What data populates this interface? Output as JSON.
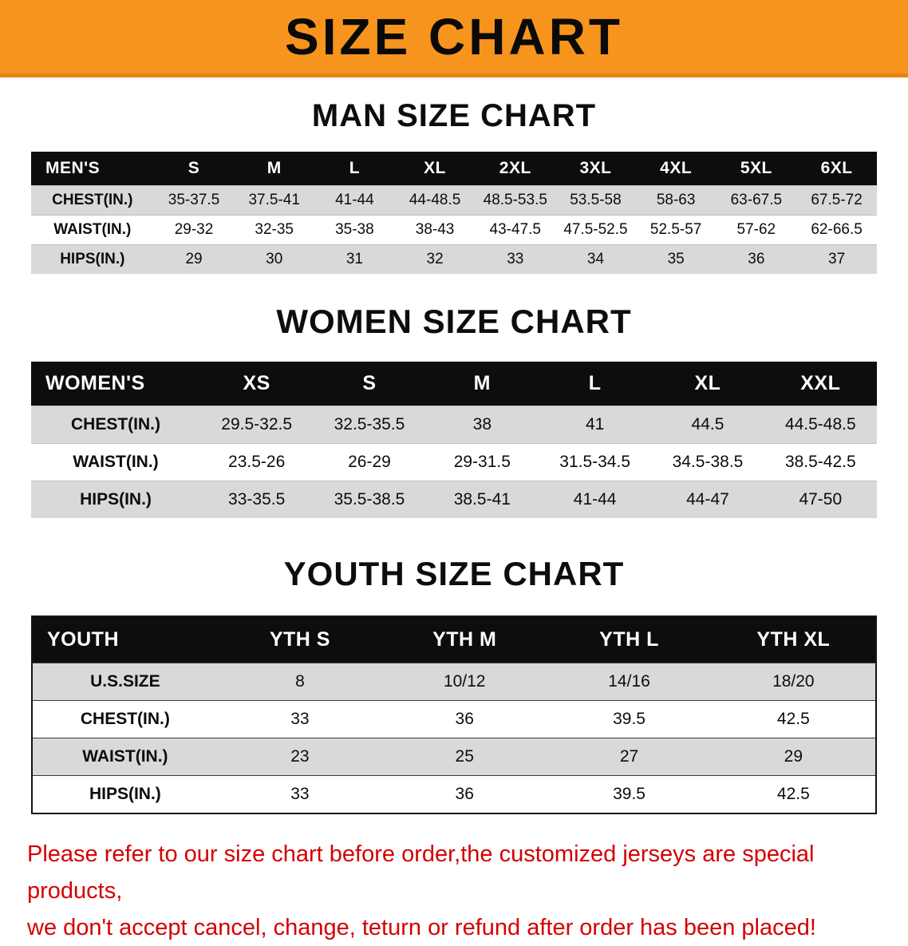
{
  "banner": {
    "title": "SIZE CHART"
  },
  "colors": {
    "banner_bg": "#f7941d",
    "banner_edge": "#e6820e",
    "header_bg": "#0d0d0d",
    "stripe_bg": "#d9d9d9",
    "notice_color": "#d40000",
    "text_color": "#0d0d0d"
  },
  "sections": [
    {
      "heading": "MAN SIZE CHART",
      "table": {
        "header": [
          "MEN'S",
          "S",
          "M",
          "L",
          "XL",
          "2XL",
          "3XL",
          "4XL",
          "5XL",
          "6XL"
        ],
        "rows": [
          [
            "CHEST(IN.)",
            "35-37.5",
            "37.5-41",
            "41-44",
            "44-48.5",
            "48.5-53.5",
            "53.5-58",
            "58-63",
            "63-67.5",
            "67.5-72"
          ],
          [
            "WAIST(IN.)",
            "29-32",
            "32-35",
            "35-38",
            "38-43",
            "43-47.5",
            "47.5-52.5",
            "52.5-57",
            "57-62",
            "62-66.5"
          ],
          [
            "HIPS(IN.)",
            "29",
            "30",
            "31",
            "32",
            "33",
            "34",
            "35",
            "36",
            "37"
          ]
        ]
      }
    },
    {
      "heading": "WOMEN SIZE CHART",
      "table": {
        "header": [
          "WOMEN'S",
          "XS",
          "S",
          "M",
          "L",
          "XL",
          "XXL"
        ],
        "rows": [
          [
            "CHEST(IN.)",
            "29.5-32.5",
            "32.5-35.5",
            "38",
            "41",
            "44.5",
            "44.5-48.5"
          ],
          [
            "WAIST(IN.)",
            "23.5-26",
            "26-29",
            "29-31.5",
            "31.5-34.5",
            "34.5-38.5",
            "38.5-42.5"
          ],
          [
            "HIPS(IN.)",
            "33-35.5",
            "35.5-38.5",
            "38.5-41",
            "41-44",
            "44-47",
            "47-50"
          ]
        ]
      }
    },
    {
      "heading": "YOUTH SIZE CHART",
      "table": {
        "header": [
          "YOUTH",
          "YTH S",
          "YTH M",
          "YTH L",
          "YTH XL"
        ],
        "rows": [
          [
            "U.S.SIZE",
            "8",
            "10/12",
            "14/16",
            "18/20"
          ],
          [
            "CHEST(IN.)",
            "33",
            "36",
            "39.5",
            "42.5"
          ],
          [
            "WAIST(IN.)",
            "23",
            "25",
            "27",
            "29"
          ],
          [
            "HIPS(IN.)",
            "33",
            "36",
            "39.5",
            "42.5"
          ]
        ]
      }
    }
  ],
  "notice": {
    "line1": "Please refer to our size chart before order,the customized jerseys are special products,",
    "line2": "we don't accept cancel, change, teturn or refund after order has been placed!"
  }
}
